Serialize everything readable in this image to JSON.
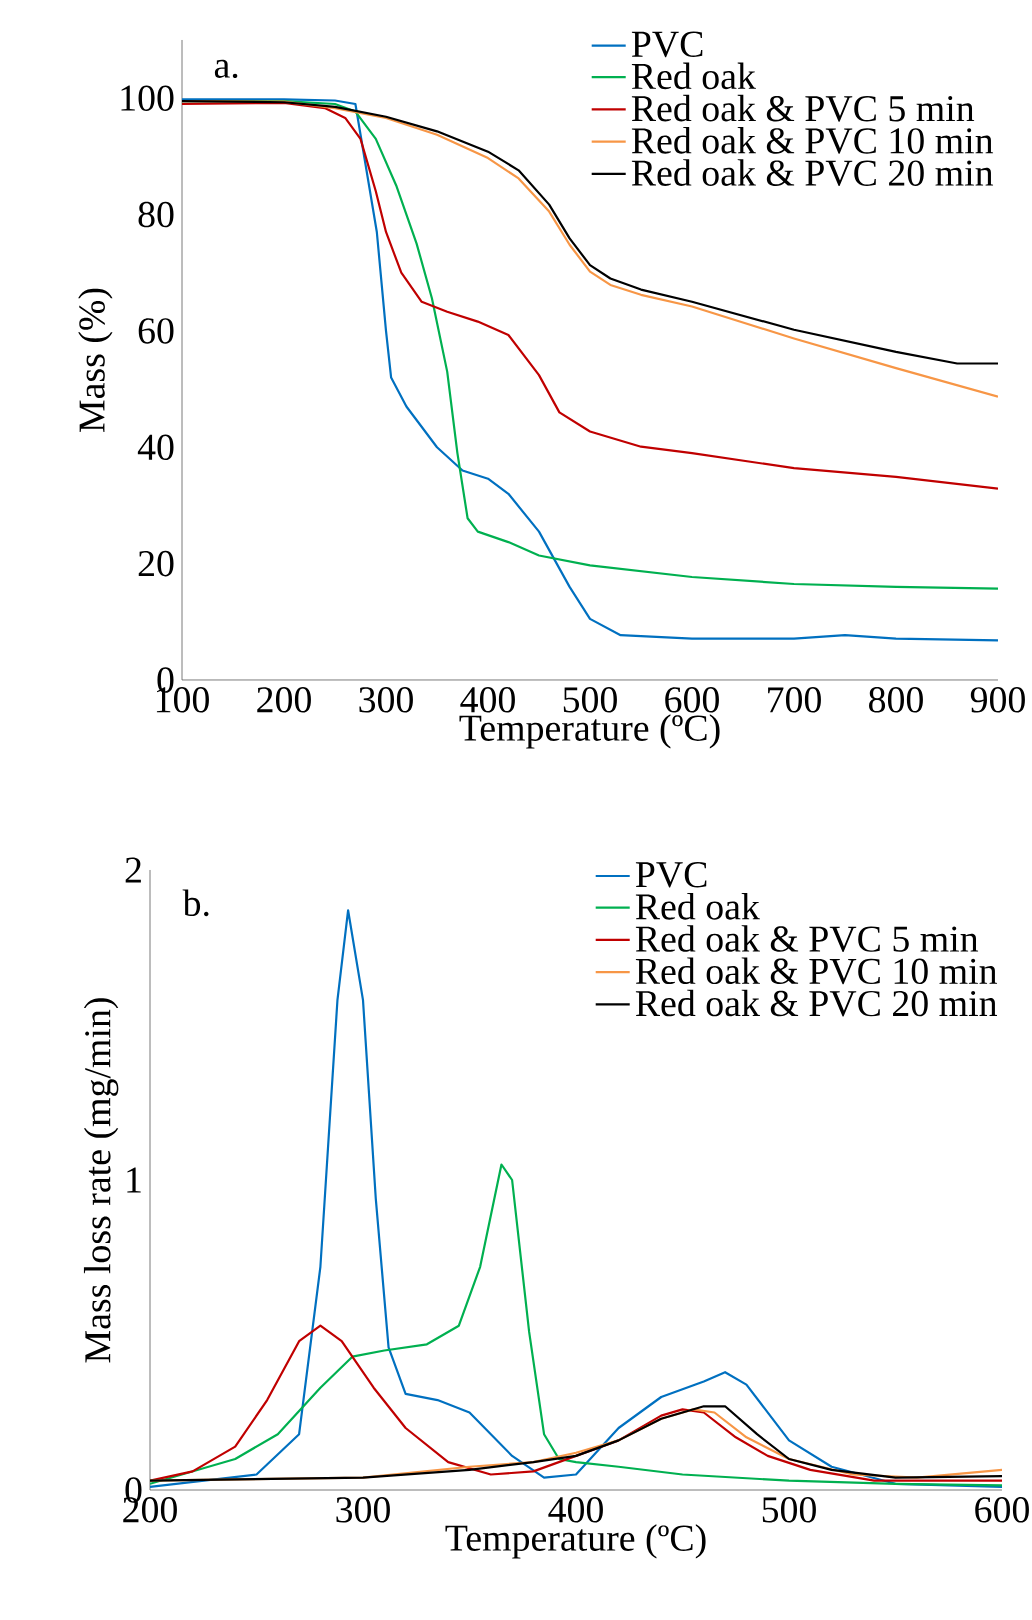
{
  "chart_data": [
    {
      "type": "line",
      "annotations": [
        "a."
      ],
      "xlabel": "Temperature (ºC)",
      "ylabel": "Mass (%)",
      "xlim": [
        100,
        900
      ],
      "xticks": [
        100,
        200,
        300,
        400,
        500,
        600,
        700,
        800,
        900
      ],
      "ylim": [
        0,
        110
      ],
      "yticks": [
        0,
        20,
        40,
        60,
        80,
        100
      ],
      "legend": "top right",
      "grid": false,
      "marker": "none",
      "line_style": "solid",
      "series": [
        {
          "name": "PVC",
          "color": "#0070c0",
          "x": [
            100,
            200,
            250,
            270,
            291,
            300,
            305,
            320,
            350,
            375,
            400,
            420,
            450,
            480,
            500,
            530,
            600,
            700,
            750,
            800,
            900
          ],
          "values": [
            99.8,
            99.8,
            99.6,
            99,
            77,
            60,
            52,
            47,
            40,
            36,
            34.6,
            32,
            25.5,
            16,
            10.5,
            7.7,
            7.1,
            7.1,
            7.7,
            7.1,
            6.8
          ]
        },
        {
          "name": "Red oak",
          "color": "#00b050",
          "x": [
            100,
            200,
            250,
            270,
            290,
            310,
            330,
            345,
            360,
            370,
            380,
            390,
            420,
            450,
            500,
            600,
            700,
            800,
            900
          ],
          "values": [
            99.5,
            99.5,
            99,
            97.7,
            93,
            85,
            75,
            65.6,
            53,
            39,
            27.8,
            25.5,
            23.7,
            21.4,
            19.7,
            17.7,
            16.5,
            16,
            15.7
          ]
        },
        {
          "name": "Red oak & PVC 5 min",
          "color": "#c00000",
          "x": [
            100,
            200,
            240,
            260,
            275,
            290,
            300,
            315,
            335,
            360,
            390,
            420,
            450,
            470,
            500,
            550,
            600,
            700,
            800,
            900
          ],
          "values": [
            99,
            99.2,
            98.3,
            96.6,
            93,
            84,
            77,
            70,
            65,
            63.3,
            61.6,
            59.3,
            52.4,
            46,
            42.7,
            40.1,
            39,
            36.4,
            34.9,
            32.9
          ]
        },
        {
          "name": "Red oak & PVC 10 min",
          "color": "#f79646",
          "x": [
            100,
            200,
            250,
            300,
            350,
            400,
            430,
            460,
            480,
            500,
            520,
            550,
            600,
            700,
            800,
            900
          ],
          "values": [
            99.5,
            99.4,
            98.3,
            96.6,
            93.7,
            89.7,
            86.2,
            80.5,
            74.8,
            70.2,
            67.9,
            66.2,
            64.2,
            58.7,
            53.6,
            48.7
          ]
        },
        {
          "name": "Red oak & PVC 20 min",
          "color": "#000000",
          "x": [
            100,
            200,
            250,
            300,
            350,
            400,
            430,
            460,
            480,
            500,
            520,
            550,
            600,
            700,
            800,
            860,
            900
          ],
          "values": [
            99.5,
            99.3,
            98.5,
            96.8,
            94.3,
            90.8,
            87.6,
            81.7,
            75.9,
            71.3,
            69,
            67.1,
            65,
            60.2,
            56.4,
            54.4,
            54.4
          ]
        }
      ]
    },
    {
      "type": "line",
      "annotations": [
        "b."
      ],
      "xlabel": "Temperature (ºC)",
      "ylabel": "Mass loss rate (mg/min)",
      "xlim": [
        200,
        600
      ],
      "xticks": [
        200,
        300,
        400,
        500,
        600
      ],
      "ylim": [
        0,
        2
      ],
      "yticks": [
        0,
        1,
        2
      ],
      "legend": "top right",
      "grid": false,
      "marker": "none",
      "line_style": "solid",
      "series": [
        {
          "name": "PVC",
          "color": "#0070c0",
          "x": [
            200,
            250,
            270,
            280,
            288,
            293,
            300,
            306,
            312,
            320,
            335,
            350,
            370,
            385,
            400,
            420,
            440,
            460,
            470,
            480,
            500,
            520,
            550,
            600
          ],
          "values": [
            0.01,
            0.05,
            0.18,
            0.72,
            1.58,
            1.87,
            1.58,
            0.94,
            0.46,
            0.31,
            0.29,
            0.25,
            0.11,
            0.04,
            0.05,
            0.2,
            0.3,
            0.35,
            0.38,
            0.34,
            0.16,
            0.075,
            0.02,
            0.01
          ]
        },
        {
          "name": "Red oak",
          "color": "#00b050",
          "x": [
            200,
            240,
            260,
            280,
            295,
            310,
            330,
            345,
            355,
            365,
            370,
            378,
            385,
            392,
            400,
            420,
            450,
            500,
            550,
            600
          ],
          "values": [
            0.02,
            0.1,
            0.18,
            0.33,
            0.43,
            0.45,
            0.47,
            0.53,
            0.72,
            1.05,
            1.0,
            0.51,
            0.18,
            0.1,
            0.09,
            0.075,
            0.05,
            0.03,
            0.02,
            0.015
          ]
        },
        {
          "name": "Red oak & PVC 5 min",
          "color": "#c00000",
          "x": [
            200,
            220,
            240,
            255,
            270,
            280,
            290,
            305,
            320,
            340,
            360,
            380,
            400,
            420,
            440,
            450,
            460,
            475,
            490,
            510,
            540,
            570,
            600
          ],
          "values": [
            0.03,
            0.06,
            0.14,
            0.29,
            0.48,
            0.53,
            0.48,
            0.33,
            0.2,
            0.09,
            0.05,
            0.06,
            0.11,
            0.16,
            0.24,
            0.26,
            0.25,
            0.17,
            0.11,
            0.065,
            0.03,
            0.03,
            0.03
          ]
        },
        {
          "name": "Red oak & PVC 10 min",
          "color": "#f79646",
          "x": [
            200,
            300,
            350,
            380,
            400,
            420,
            440,
            455,
            465,
            480,
            500,
            530,
            560,
            600
          ],
          "values": [
            0.03,
            0.04,
            0.075,
            0.09,
            0.12,
            0.16,
            0.23,
            0.26,
            0.25,
            0.17,
            0.1,
            0.05,
            0.04,
            0.065
          ]
        },
        {
          "name": "Red oak & PVC 20 min",
          "color": "#000000",
          "x": [
            200,
            300,
            350,
            380,
            400,
            420,
            440,
            460,
            470,
            485,
            500,
            520,
            550,
            600
          ],
          "values": [
            0.03,
            0.04,
            0.065,
            0.09,
            0.11,
            0.16,
            0.23,
            0.27,
            0.27,
            0.18,
            0.1,
            0.065,
            0.04,
            0.045
          ]
        }
      ]
    }
  ]
}
